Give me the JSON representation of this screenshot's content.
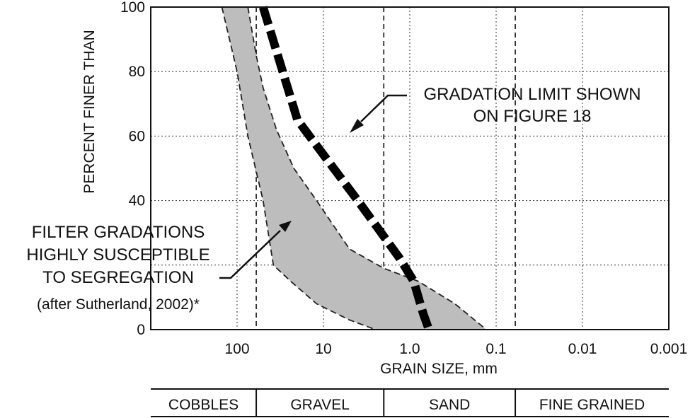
{
  "chart_data": {
    "type": "area",
    "xlabel": "GRAIN SIZE, mm",
    "ylabel": "PERCENT FINER THAN",
    "x_scale": "log-reversed",
    "xlim": [
      1000,
      0.001
    ],
    "ylim": [
      0,
      100
    ],
    "x_ticks": [
      {
        "value": 100,
        "label": "100"
      },
      {
        "value": 10,
        "label": "10"
      },
      {
        "value": 1,
        "label": "1.0"
      },
      {
        "value": 0.1,
        "label": "0.1"
      },
      {
        "value": 0.01,
        "label": "0.01"
      },
      {
        "value": 0.001,
        "label": "0.001"
      }
    ],
    "y_ticks": [
      0,
      20,
      40,
      60,
      80,
      100
    ],
    "y_tick_labels": [
      "0",
      "",
      "40",
      "60",
      "80",
      "100"
    ],
    "grid": true,
    "boundary_lines_mm": [
      60,
      2,
      0.06
    ],
    "series": [
      {
        "kind": "band",
        "coarse_edge": [
          [
            150,
            100
          ],
          [
            100,
            80
          ],
          [
            75,
            60
          ],
          [
            50,
            40
          ],
          [
            38,
            20
          ],
          [
            24,
            15
          ],
          [
            12,
            8
          ],
          [
            5,
            3
          ],
          [
            2.5,
            0
          ]
        ],
        "fine_edge": [
          [
            75,
            100
          ],
          [
            60,
            85
          ],
          [
            50,
            75
          ],
          [
            35,
            62
          ],
          [
            22,
            50
          ],
          [
            12,
            40
          ],
          [
            5,
            25
          ],
          [
            2,
            19
          ],
          [
            0.8,
            15
          ],
          [
            0.3,
            8
          ],
          [
            0.13,
            0
          ]
        ],
        "color": "#bdbdbd"
      },
      {
        "kind": "limit-line",
        "points": [
          [
            50,
            100
          ],
          [
            20,
            65
          ],
          [
            4,
            40
          ],
          [
            1.3,
            22
          ],
          [
            0.9,
            15
          ],
          [
            0.7,
            5
          ],
          [
            0.6,
            0
          ]
        ],
        "color": "#000000"
      }
    ],
    "annotations": [
      {
        "id": "band",
        "lines": [
          "FILTER GRADATIONS",
          "HIGHLY SUSCEPTIBLE",
          "TO SEGREGATION",
          "(after Sutherland, 2002)*"
        ]
      },
      {
        "id": "limit",
        "lines": [
          "GRADATION LIMIT SHOWN",
          "ON FIGURE 18"
        ]
      }
    ],
    "categories": [
      "COBBLES",
      "GRAVEL",
      "SAND",
      "FINE GRAINED"
    ]
  }
}
